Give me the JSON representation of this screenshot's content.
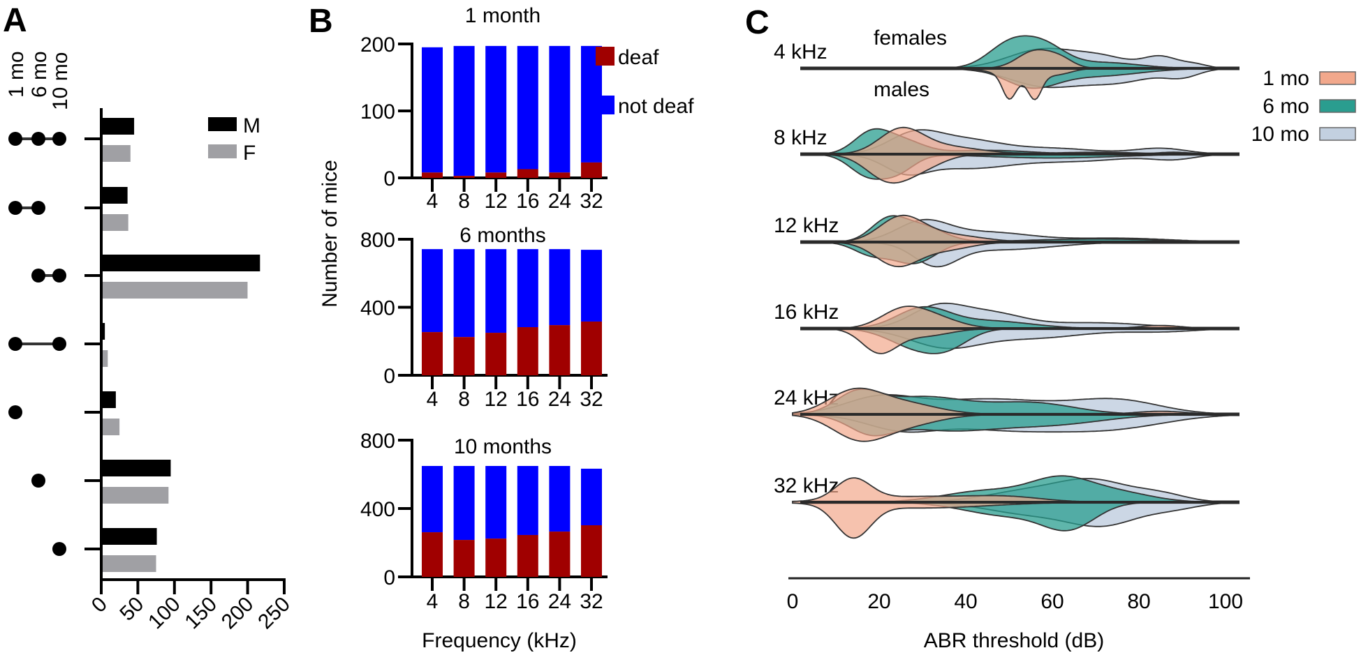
{
  "panels": {
    "a": "A",
    "b": "B",
    "c": "C"
  },
  "chart_data": [
    {
      "id": "A",
      "type": "bar",
      "orientation": "horizontal",
      "column_labels": [
        "1 mo",
        "6 mo",
        "10 mo"
      ],
      "categories": [
        [
          true,
          true,
          true
        ],
        [
          true,
          true,
          false
        ],
        [
          false,
          true,
          true
        ],
        [
          true,
          false,
          true
        ],
        [
          true,
          false,
          false
        ],
        [
          false,
          true,
          false
        ],
        [
          false,
          false,
          true
        ]
      ],
      "series": [
        {
          "name": "M",
          "color": "#000000",
          "values": [
            43,
            34,
            215,
            3,
            18,
            93,
            74
          ]
        },
        {
          "name": "F",
          "color": "#a0a0a4",
          "values": [
            38,
            35,
            198,
            7,
            23,
            90,
            73
          ]
        }
      ],
      "xticks": [
        "0",
        "50",
        "100",
        "150",
        "200",
        "250"
      ],
      "xlim": [
        0,
        250
      ],
      "legend": [
        "M",
        "F"
      ],
      "legend_position": "top-right"
    },
    {
      "id": "B",
      "type": "bar",
      "stacked": true,
      "ylabel": "Number of mice",
      "xlabel": "Frequency (kHz)",
      "categories": [
        "4",
        "8",
        "12",
        "16",
        "24",
        "32"
      ],
      "legend": [
        {
          "name": "deaf",
          "color": "#a00000"
        },
        {
          "name": "not deaf",
          "color": "#0000ff"
        }
      ],
      "legend_position": "right",
      "subplots": [
        {
          "title": "1 month",
          "ylim": [
            0,
            200
          ],
          "yticks": [
            "0",
            "100",
            "200"
          ],
          "deaf": [
            8,
            3,
            8,
            13,
            8,
            23
          ],
          "not_deaf": [
            187,
            194,
            189,
            184,
            189,
            174
          ]
        },
        {
          "title": "6 months",
          "ylim": [
            0,
            800
          ],
          "yticks": [
            "0",
            "400",
            "800"
          ],
          "deaf": [
            254,
            225,
            250,
            283,
            295,
            316
          ],
          "not_deaf": [
            488,
            517,
            492,
            459,
            447,
            422
          ]
        },
        {
          "title": "10 months",
          "ylim": [
            0,
            800
          ],
          "yticks": [
            "0",
            "400",
            "800"
          ],
          "deaf": [
            261,
            216,
            224,
            245,
            265,
            302
          ],
          "not_deaf": [
            388,
            433,
            425,
            404,
            384,
            331
          ]
        }
      ]
    },
    {
      "id": "C",
      "type": "violin",
      "xlabel": "ABR threshold (dB)",
      "xticks": [
        "0",
        "20",
        "40",
        "60",
        "80",
        "100"
      ],
      "xlim": [
        0,
        100
      ],
      "annotations": {
        "top": "females",
        "bottom": "males"
      },
      "legend": [
        {
          "name": "1 mo",
          "color": "#f2a88c"
        },
        {
          "name": "6 mo",
          "color": "#2a9d8f"
        },
        {
          "name": "10 mo",
          "color": "#c3d0e0"
        }
      ],
      "legend_position": "top-right",
      "rows": [
        {
          "label": "4 kHz",
          "groups": [
            {
              "female": [
                [
                  58,
                  8,
                  0.5
                ],
                [
                  72,
                  6,
                  0.25
                ],
                [
                  85,
                  4,
                  0.3
                ],
                [
                  93,
                  3,
                  0.1
                ]
              ],
              "male": [
                [
                  58,
                  8,
                  0.45
                ],
                [
                  75,
                  8,
                  0.35
                ],
                [
                  90,
                  4,
                  0.2
                ]
              ]
            },
            {
              "female": [
                [
                  50,
                  5,
                  0.6
                ],
                [
                  58,
                  5,
                  0.55
                ],
                [
                  72,
                  8,
                  0.15
                ]
              ],
              "male": [
                [
                  55,
                  6,
                  0.45
                ],
                [
                  70,
                  10,
                  0.2
                ]
              ]
            },
            {
              "female": [
                [
                  56,
                  4,
                  0.45
                ],
                [
                  62,
                  3,
                  0.2
                ]
              ],
              "male": [
                [
                  50,
                  1.5,
                  0.55
                ],
                [
                  56,
                  1.5,
                  0.55
                ],
                [
                  53,
                  5,
                  0.3
                ],
                [
                  62,
                  3,
                  0.1
                ]
              ]
            }
          ]
        },
        {
          "label": "8 kHz",
          "groups": [
            {
              "female": [
                [
                  28,
                  6,
                  0.5
                ],
                [
                  40,
                  8,
                  0.35
                ],
                [
                  60,
                  10,
                  0.15
                ],
                [
                  85,
                  6,
                  0.15
                ]
              ],
              "male": [
                [
                  26,
                  5,
                  0.4
                ],
                [
                  40,
                  10,
                  0.35
                ],
                [
                  65,
                  12,
                  0.18
                ],
                [
                  88,
                  5,
                  0.12
                ]
              ]
            },
            {
              "female": [
                [
                  18,
                  4,
                  0.5
                ],
                [
                  25,
                  5,
                  0.35
                ],
                [
                  45,
                  10,
                  0.1
                ],
                [
                  88,
                  4,
                  0.05
                ]
              ],
              "male": [
                [
                  17,
                  4,
                  0.5
                ],
                [
                  24,
                  4,
                  0.45
                ],
                [
                  60,
                  15,
                  0.1
                ]
              ]
            },
            {
              "female": [
                [
                  25,
                  5,
                  0.6
                ],
                [
                  35,
                  8,
                  0.2
                ],
                [
                  70,
                  10,
                  0.05
                ]
              ],
              "male": [
                [
                  22,
                  5,
                  0.65
                ],
                [
                  30,
                  5,
                  0.3
                ]
              ]
            }
          ]
        },
        {
          "label": "12 kHz",
          "groups": [
            {
              "female": [
                [
                  30,
                  6,
                  0.5
                ],
                [
                  45,
                  10,
                  0.25
                ],
                [
                  75,
                  12,
                  0.1
                ]
              ],
              "male": [
                [
                  33,
                  5,
                  0.55
                ],
                [
                  48,
                  12,
                  0.2
                ]
              ]
            },
            {
              "female": [
                [
                  22,
                  4,
                  0.55
                ],
                [
                  30,
                  5,
                  0.4
                ],
                [
                  70,
                  15,
                  0.08
                ]
              ],
              "male": [
                [
                  18,
                  4,
                  0.3
                ],
                [
                  28,
                  5,
                  0.55
                ]
              ]
            },
            {
              "female": [
                [
                  25,
                  5,
                  0.6
                ],
                [
                  35,
                  8,
                  0.2
                ]
              ],
              "male": [
                [
                  24,
                  5,
                  0.6
                ],
                [
                  35,
                  6,
                  0.2
                ]
              ]
            }
          ]
        },
        {
          "label": "16 kHz",
          "groups": [
            {
              "female": [
                [
                  33,
                  6,
                  0.5
                ],
                [
                  45,
                  8,
                  0.4
                ],
                [
                  70,
                  12,
                  0.15
                ]
              ],
              "male": [
                [
                  35,
                  8,
                  0.45
                ],
                [
                  55,
                  12,
                  0.25
                ],
                [
                  85,
                  8,
                  0.08
                ]
              ]
            },
            {
              "female": [
                [
                  30,
                  6,
                  0.5
                ],
                [
                  45,
                  10,
                  0.2
                ]
              ],
              "male": [
                [
                  28,
                  6,
                  0.45
                ],
                [
                  36,
                  5,
                  0.4
                ]
              ]
            },
            {
              "female": [
                [
                  25,
                  5,
                  0.4
                ],
                [
                  32,
                  6,
                  0.3
                ],
                [
                  85,
                  5,
                  0.08
                ]
              ],
              "male": [
                [
                  20,
                  4,
                  0.6
                ],
                [
                  30,
                  6,
                  0.2
                ]
              ]
            }
          ]
        },
        {
          "label": "24 kHz",
          "groups": [
            {
              "female": [
                [
                  20,
                  8,
                  0.4
                ],
                [
                  45,
                  15,
                  0.4
                ],
                [
                  75,
                  10,
                  0.35
                ]
              ],
              "male": [
                [
                  25,
                  8,
                  0.35
                ],
                [
                  50,
                  15,
                  0.4
                ],
                [
                  75,
                  12,
                  0.3
                ]
              ]
            },
            {
              "female": [
                [
                  15,
                  5,
                  0.5
                ],
                [
                  30,
                  10,
                  0.45
                ],
                [
                  55,
                  10,
                  0.3
                ]
              ],
              "male": [
                [
                  18,
                  5,
                  0.4
                ],
                [
                  35,
                  12,
                  0.4
                ],
                [
                  60,
                  12,
                  0.25
                ]
              ]
            },
            {
              "female": [
                [
                  14,
                  6,
                  0.55
                ],
                [
                  25,
                  8,
                  0.3
                ],
                [
                  85,
                  6,
                  0.08
                ]
              ],
              "male": [
                [
                  15,
                  6,
                  0.55
                ],
                [
                  25,
                  8,
                  0.3
                ]
              ]
            }
          ]
        },
        {
          "label": "32 kHz",
          "groups": [
            {
              "female": [
                [
                  55,
                  10,
                  0.3
                ],
                [
                  70,
                  8,
                  0.5
                ],
                [
                  85,
                  6,
                  0.2
                ]
              ],
              "male": [
                [
                  55,
                  10,
                  0.3
                ],
                [
                  72,
                  8,
                  0.55
                ],
                [
                  88,
                  6,
                  0.15
                ]
              ]
            },
            {
              "female": [
                [
                  45,
                  10,
                  0.3
                ],
                [
                  62,
                  7,
                  0.55
                ],
                [
                  75,
                  8,
                  0.25
                ]
              ],
              "male": [
                [
                  50,
                  10,
                  0.35
                ],
                [
                  64,
                  6,
                  0.6
                ]
              ]
            },
            {
              "female": [
                [
                  14,
                  4,
                  0.55
                ],
                [
                  30,
                  15,
                  0.15
                ],
                [
                  50,
                  8,
                  0.1
                ]
              ],
              "male": [
                [
                  14,
                  4,
                  0.85
                ],
                [
                  30,
                  15,
                  0.15
                ]
              ]
            }
          ]
        }
      ]
    }
  ]
}
